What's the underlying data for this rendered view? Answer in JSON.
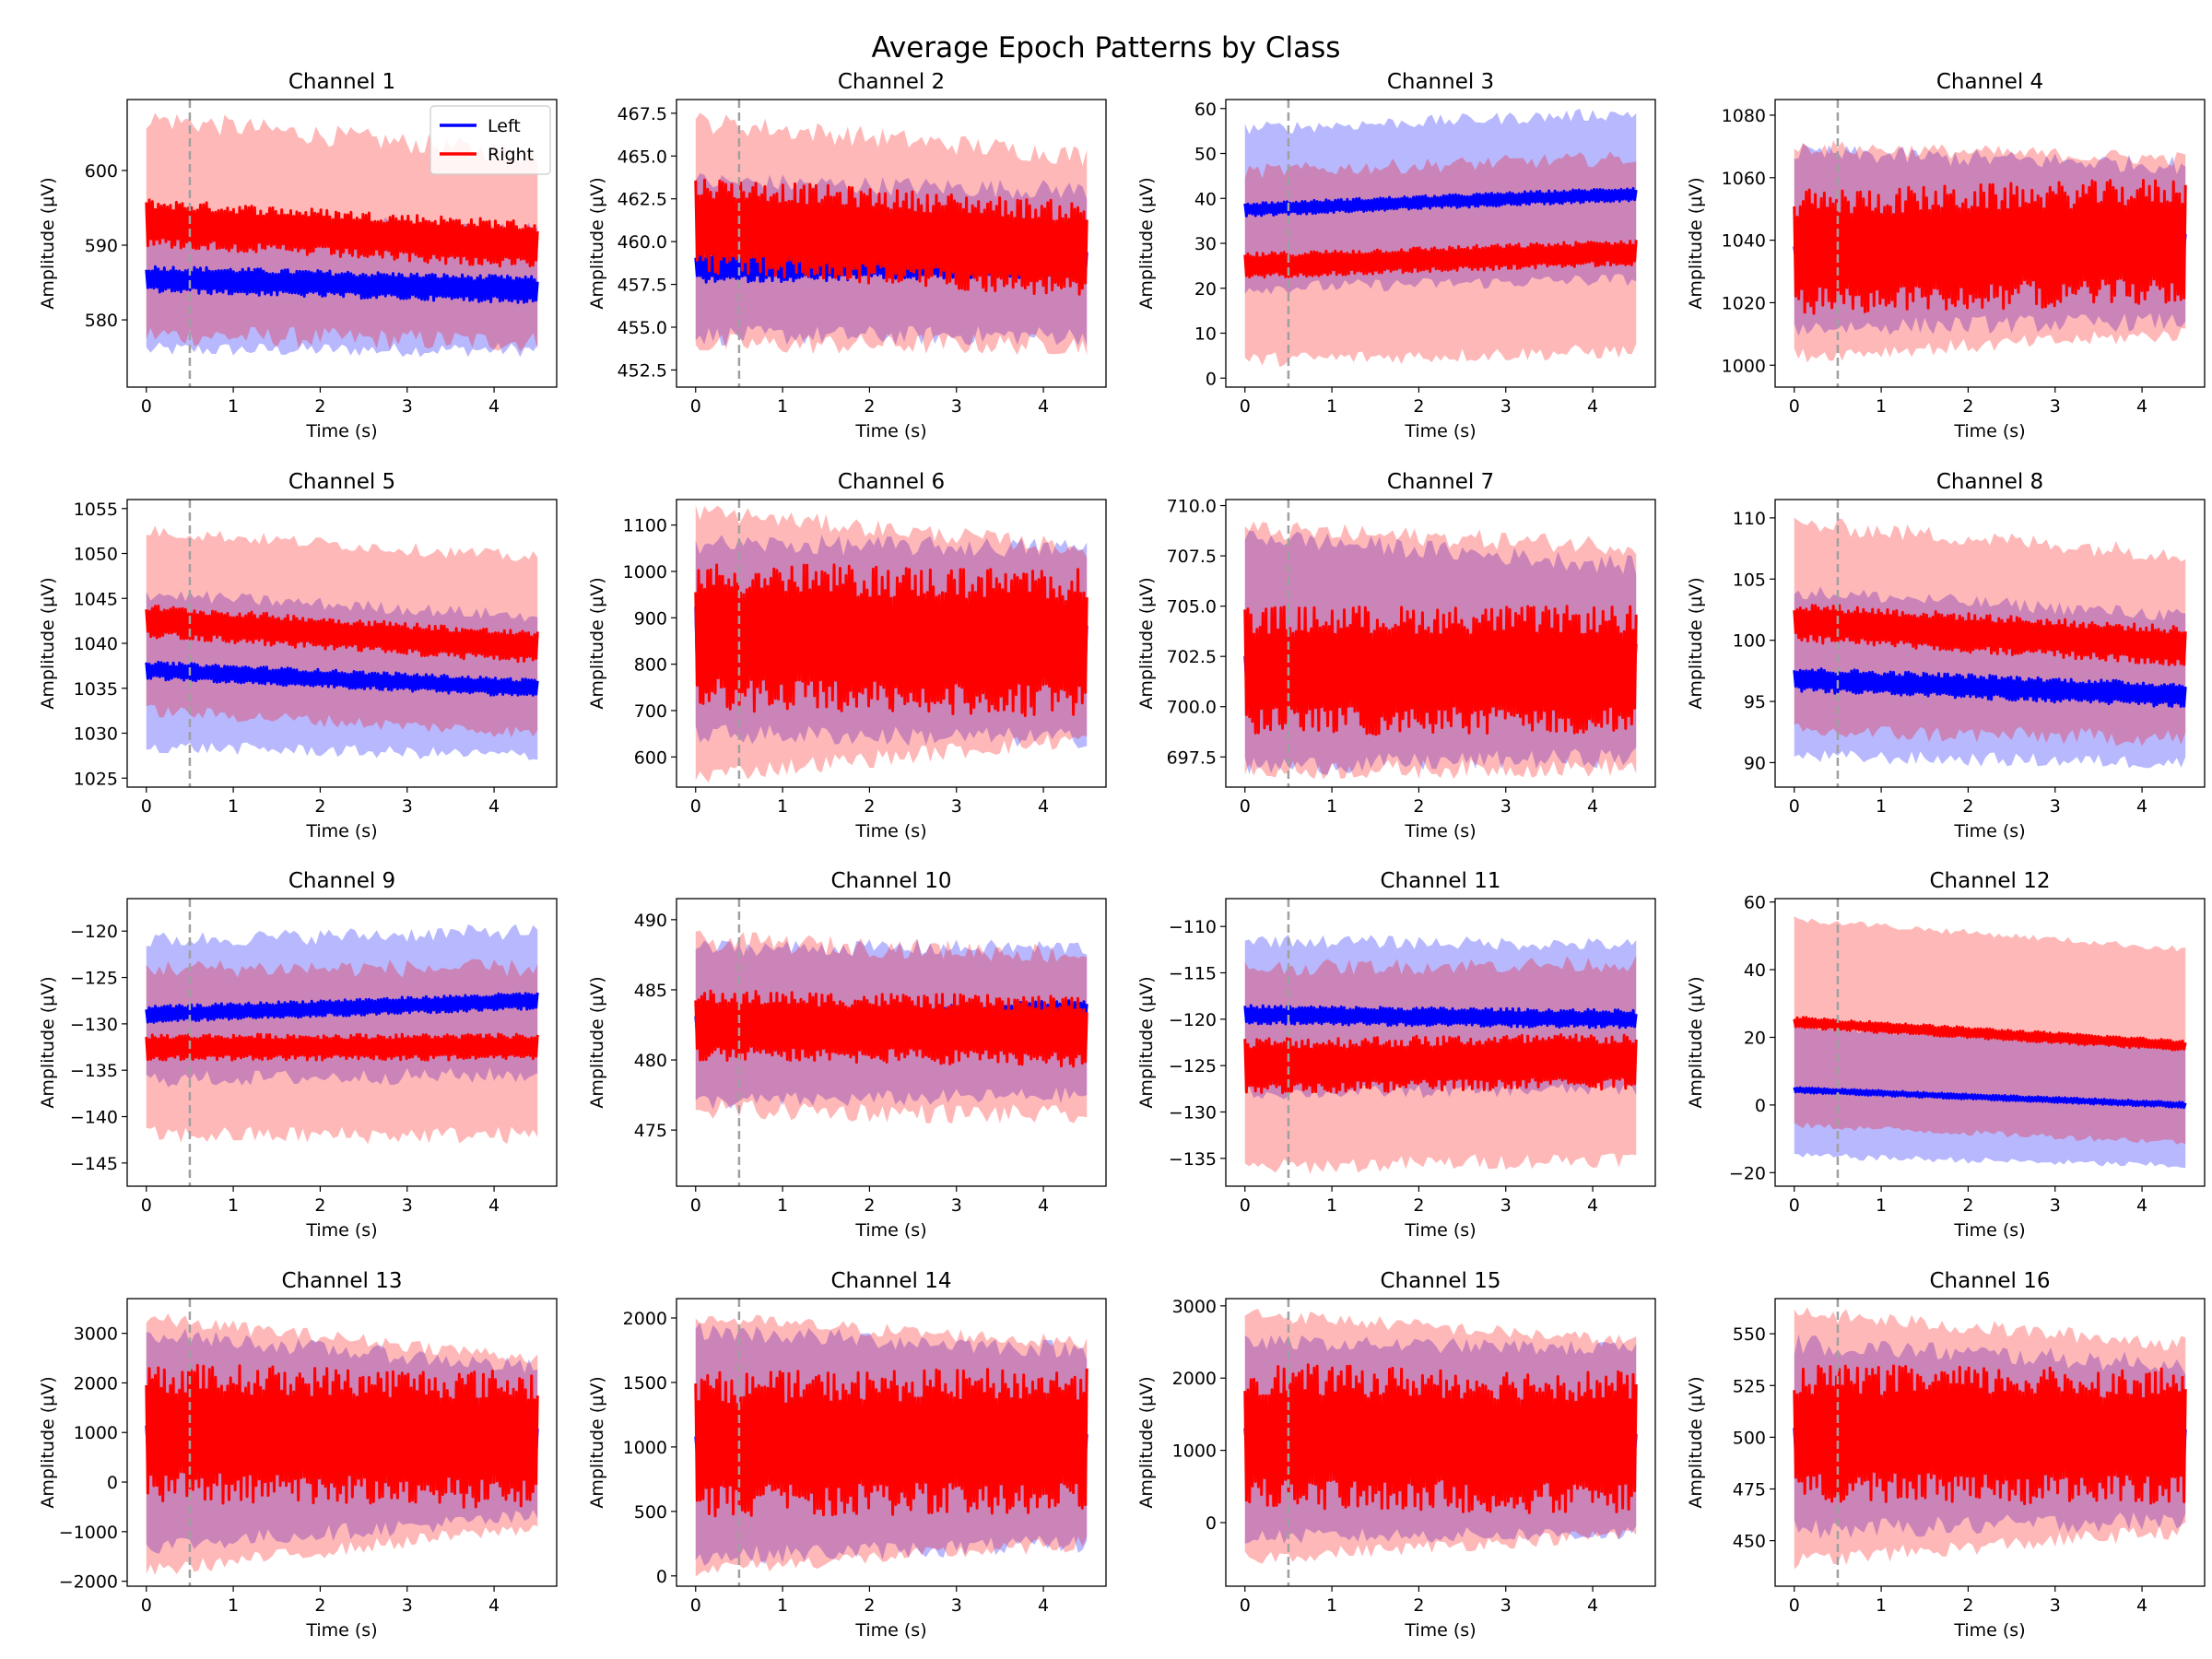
{
  "figure": {
    "title": "Average Epoch Patterns by Class",
    "series_colors": {
      "Left": "#0000ff",
      "Right": "#ff0000"
    },
    "marker_line_color": "#a0a0a0"
  },
  "chart_data": [
    {
      "type": "line",
      "title": "Channel 1",
      "xlabel": "Time (s)",
      "ylabel": "Amplitude (μV)",
      "xlim": [
        -0.22,
        4.72
      ],
      "xticks": [
        0,
        1,
        2,
        3,
        4
      ],
      "ylim": [
        571,
        609.5
      ],
      "yticks": [
        580,
        590,
        600
      ],
      "vline_x": 0.5,
      "legend": {
        "entries": [
          "Left",
          "Right"
        ],
        "position": "upper right"
      },
      "series": [
        {
          "name": "Left",
          "color": "#0000ff",
          "mean_start": 585.5,
          "mean_end": 584.0,
          "mean_half_width": 1.8,
          "band_low_start": 576,
          "band_low_end": 576,
          "band_high_start": 594,
          "band_high_end": 592,
          "band_edge": 2.0
        },
        {
          "name": "Right",
          "color": "#ff0000",
          "mean_start": 593.0,
          "mean_end": 590.0,
          "mean_half_width": 3.2,
          "band_low_start": 578,
          "band_low_end": 577,
          "band_high_start": 607,
          "band_high_end": 602,
          "band_edge": 3.0
        }
      ]
    },
    {
      "type": "line",
      "title": "Channel 2",
      "xlabel": "Time (s)",
      "ylabel": "Amplitude (μV)",
      "xlim": [
        -0.22,
        4.72
      ],
      "xticks": [
        0,
        1,
        2,
        3,
        4
      ],
      "ylim": [
        451.5,
        468.3
      ],
      "yticks": [
        452.5,
        455.0,
        457.5,
        460.0,
        462.5,
        465.0,
        467.5
      ],
      "vline_x": 0.5,
      "series": [
        {
          "name": "Left",
          "color": "#0000ff",
          "mean_start": 458.5,
          "mean_end": 458.8,
          "mean_half_width": 0.9,
          "band_low_start": 454.5,
          "band_low_end": 454.5,
          "band_high_start": 463.5,
          "band_high_end": 463.0,
          "band_edge": 1.2
        },
        {
          "name": "Right",
          "color": "#ff0000",
          "mean_start": 461.0,
          "mean_end": 459.5,
          "mean_half_width": 2.8,
          "band_low_start": 454.0,
          "band_low_end": 454.0,
          "band_high_start": 467.0,
          "band_high_end": 465.0,
          "band_edge": 1.3
        }
      ]
    },
    {
      "type": "line",
      "title": "Channel 3",
      "xlabel": "Time (s)",
      "ylabel": "Amplitude (μV)",
      "xlim": [
        -0.22,
        4.72
      ],
      "xticks": [
        0,
        1,
        2,
        3,
        4
      ],
      "ylim": [
        -2,
        62
      ],
      "yticks": [
        0,
        10,
        20,
        30,
        40,
        50,
        60
      ],
      "vline_x": 0.5,
      "series": [
        {
          "name": "Left",
          "color": "#0000ff",
          "mean_start": 37.5,
          "mean_end": 41.0,
          "mean_half_width": 1.5,
          "band_low_start": 20,
          "band_low_end": 22,
          "band_high_start": 55.5,
          "band_high_end": 59,
          "band_edge": 3.0
        },
        {
          "name": "Right",
          "color": "#ff0000",
          "mean_start": 25.0,
          "mean_end": 28.0,
          "mean_half_width": 2.8,
          "band_low_start": 4,
          "band_low_end": 6,
          "band_high_start": 46,
          "band_high_end": 49,
          "band_edge": 3.5
        }
      ]
    },
    {
      "type": "line",
      "title": "Channel 4",
      "xlabel": "Time (s)",
      "ylabel": "Amplitude (μV)",
      "xlim": [
        -0.22,
        4.72
      ],
      "xticks": [
        0,
        1,
        2,
        3,
        4
      ],
      "ylim": [
        993,
        1085
      ],
      "yticks": [
        1000,
        1020,
        1040,
        1060,
        1080
      ],
      "vline_x": 0.5,
      "series": [
        {
          "name": "Left",
          "color": "#0000ff",
          "mean_start": 1036,
          "mean_end": 1040,
          "mean_half_width": 3.0,
          "band_low_start": 1012,
          "band_low_end": 1014,
          "band_high_start": 1068,
          "band_high_end": 1064,
          "band_edge": 6.0
        },
        {
          "name": "Right",
          "color": "#ff0000",
          "mean_start": 1036,
          "mean_end": 1040,
          "mean_half_width": 20.0,
          "band_low_start": 1003,
          "band_low_end": 1010,
          "band_high_start": 1070,
          "band_high_end": 1066,
          "band_edge": 5.0
        }
      ]
    },
    {
      "type": "line",
      "title": "Channel 5",
      "xlabel": "Time (s)",
      "ylabel": "Amplitude (μV)",
      "xlim": [
        -0.22,
        4.72
      ],
      "xticks": [
        0,
        1,
        2,
        3,
        4
      ],
      "ylim": [
        1024,
        1056
      ],
      "yticks": [
        1025,
        1030,
        1035,
        1040,
        1045,
        1050,
        1055
      ],
      "vline_x": 0.5,
      "series": [
        {
          "name": "Left",
          "color": "#0000ff",
          "mean_start": 1037.0,
          "mean_end": 1035.0,
          "mean_half_width": 1.0,
          "band_low_start": 1028.5,
          "band_low_end": 1027.5,
          "band_high_start": 1045.5,
          "band_high_end": 1043.0,
          "band_edge": 1.5
        },
        {
          "name": "Right",
          "color": "#ff0000",
          "mean_start": 1042.5,
          "mean_end": 1039.5,
          "mean_half_width": 1.8,
          "band_low_start": 1032.5,
          "band_low_end": 1030.0,
          "band_high_start": 1052.5,
          "band_high_end": 1049.5,
          "band_edge": 1.5
        }
      ]
    },
    {
      "type": "line",
      "title": "Channel 6",
      "xlabel": "Time (s)",
      "ylabel": "Amplitude (μV)",
      "xlim": [
        -0.22,
        4.72
      ],
      "xticks": [
        0,
        1,
        2,
        3,
        4
      ],
      "ylim": [
        535,
        1155
      ],
      "yticks": [
        600,
        700,
        800,
        900,
        1000,
        1100
      ],
      "vline_x": 0.5,
      "series": [
        {
          "name": "Left",
          "color": "#0000ff",
          "mean_start": 855,
          "mean_end": 840,
          "mean_half_width": 70,
          "band_low_start": 650,
          "band_low_end": 640,
          "band_high_start": 1060,
          "band_high_end": 1050,
          "band_edge": 45
        },
        {
          "name": "Right",
          "color": "#ff0000",
          "mean_start": 860,
          "mean_end": 845,
          "mean_half_width": 160,
          "band_low_start": 560,
          "band_low_end": 640,
          "band_high_start": 1130,
          "band_high_end": 1050,
          "band_edge": 40
        }
      ]
    },
    {
      "type": "line",
      "title": "Channel 7",
      "xlabel": "Time (s)",
      "ylabel": "Amplitude (μV)",
      "xlim": [
        -0.22,
        4.72
      ],
      "xticks": [
        0,
        1,
        2,
        3,
        4
      ],
      "ylim": [
        696,
        710.3
      ],
      "yticks": [
        697.5,
        700.0,
        702.5,
        705.0,
        707.5,
        710.0
      ],
      "vline_x": 0.5,
      "series": [
        {
          "name": "Left",
          "color": "#0000ff",
          "mean_start": 702.0,
          "mean_end": 702.5,
          "mean_half_width": 0.8,
          "band_low_start": 697.0,
          "band_low_end": 697.5,
          "band_high_start": 708.5,
          "band_high_end": 707.0,
          "band_edge": 1.0
        },
        {
          "name": "Right",
          "color": "#ff0000",
          "mean_start": 701.8,
          "mean_end": 701.8,
          "mean_half_width": 3.2,
          "band_low_start": 696.8,
          "band_low_end": 697.0,
          "band_high_start": 708.8,
          "band_high_end": 708.0,
          "band_edge": 1.0
        }
      ]
    },
    {
      "type": "line",
      "title": "Channel 8",
      "xlabel": "Time (s)",
      "ylabel": "Amplitude (μV)",
      "xlim": [
        -0.22,
        4.72
      ],
      "xticks": [
        0,
        1,
        2,
        3,
        4
      ],
      "ylim": [
        88,
        111.5
      ],
      "yticks": [
        90,
        95,
        100,
        105,
        110
      ],
      "vline_x": 0.5,
      "series": [
        {
          "name": "Left",
          "color": "#0000ff",
          "mean_start": 96.8,
          "mean_end": 95.5,
          "mean_half_width": 1.0,
          "band_low_start": 90.5,
          "band_low_end": 90.0,
          "band_high_start": 104.0,
          "band_high_end": 102.0,
          "band_edge": 1.2
        },
        {
          "name": "Right",
          "color": "#ff0000",
          "mean_start": 101.5,
          "mean_end": 99.5,
          "mean_half_width": 1.6,
          "band_low_start": 92.5,
          "band_low_end": 92.0,
          "band_high_start": 109.5,
          "band_high_end": 107.0,
          "band_edge": 1.5
        }
      ]
    },
    {
      "type": "line",
      "title": "Channel 9",
      "xlabel": "Time (s)",
      "ylabel": "Amplitude (μV)",
      "xlim": [
        -0.22,
        4.72
      ],
      "xticks": [
        0,
        1,
        2,
        3,
        4
      ],
      "ylim": [
        -147.5,
        -116.5
      ],
      "yticks": [
        -145,
        -140,
        -135,
        -130,
        -125,
        -120
      ],
      "vline_x": 0.5,
      "series": [
        {
          "name": "Left",
          "color": "#0000ff",
          "mean_start": -129.0,
          "mean_end": -127.5,
          "mean_half_width": 0.9,
          "band_low_start": -136.0,
          "band_low_end": -135.5,
          "band_high_start": -121.0,
          "band_high_end": -120.0,
          "band_edge": 1.8
        },
        {
          "name": "Right",
          "color": "#ff0000",
          "mean_start": -132.5,
          "mean_end": -132.5,
          "mean_half_width": 1.4,
          "band_low_start": -142.0,
          "band_low_end": -142.0,
          "band_high_start": -124.0,
          "band_high_end": -124.0,
          "band_edge": 2.0
        }
      ]
    },
    {
      "type": "line",
      "title": "Channel 10",
      "xlabel": "Time (s)",
      "ylabel": "Amplitude (μV)",
      "xlim": [
        -0.22,
        4.72
      ],
      "xticks": [
        0,
        1,
        2,
        3,
        4
      ],
      "ylim": [
        471,
        491.5
      ],
      "yticks": [
        475,
        480,
        485,
        490
      ],
      "vline_x": 0.5,
      "series": [
        {
          "name": "Left",
          "color": "#0000ff",
          "mean_start": 482.5,
          "mean_end": 483.5,
          "mean_half_width": 0.8,
          "band_low_start": 477.0,
          "band_low_end": 477.5,
          "band_high_start": 488.0,
          "band_high_end": 488.0,
          "band_edge": 1.2
        },
        {
          "name": "Right",
          "color": "#ff0000",
          "mean_start": 482.5,
          "mean_end": 482.0,
          "mean_half_width": 2.5,
          "band_low_start": 476.5,
          "band_low_end": 476.0,
          "band_high_start": 488.5,
          "band_high_end": 487.5,
          "band_edge": 1.5
        }
      ]
    },
    {
      "type": "line",
      "title": "Channel 11",
      "xlabel": "Time (s)",
      "ylabel": "Amplitude (μV)",
      "xlim": [
        -0.22,
        4.72
      ],
      "xticks": [
        0,
        1,
        2,
        3,
        4
      ],
      "ylim": [
        -138,
        -107
      ],
      "yticks": [
        -135,
        -130,
        -125,
        -120,
        -115,
        -110
      ],
      "vline_x": 0.5,
      "series": [
        {
          "name": "Left",
          "color": "#0000ff",
          "mean_start": -119.5,
          "mean_end": -120.0,
          "mean_half_width": 1.0,
          "band_low_start": -128.0,
          "band_low_end": -127.5,
          "band_high_start": -111.5,
          "band_high_end": -112.0,
          "band_edge": 1.5
        },
        {
          "name": "Right",
          "color": "#ff0000",
          "mean_start": -125.0,
          "mean_end": -124.5,
          "mean_half_width": 3.0,
          "band_low_start": -136.0,
          "band_low_end": -135.0,
          "band_high_start": -114.5,
          "band_high_end": -114.0,
          "band_edge": 1.8
        }
      ]
    },
    {
      "type": "line",
      "title": "Channel 12",
      "xlabel": "Time (s)",
      "ylabel": "Amplitude (μV)",
      "xlim": [
        -0.22,
        4.72
      ],
      "xticks": [
        0,
        1,
        2,
        3,
        4
      ],
      "ylim": [
        -24,
        61
      ],
      "yticks": [
        -20,
        0,
        20,
        40,
        60
      ],
      "vline_x": 0.5,
      "series": [
        {
          "name": "Left",
          "color": "#0000ff",
          "mean_start": 4.5,
          "mean_end": 0.0,
          "mean_half_width": 0.8,
          "band_low_start": -15,
          "band_low_end": -18,
          "band_high_start": 23,
          "band_high_end": 18,
          "band_edge": 2.0
        },
        {
          "name": "Right",
          "color": "#ff0000",
          "mean_start": 24.5,
          "mean_end": 17.5,
          "mean_half_width": 1.6,
          "band_low_start": -6,
          "band_low_end": -11,
          "band_high_start": 55,
          "band_high_end": 46,
          "band_edge": 2.0
        }
      ]
    },
    {
      "type": "line",
      "title": "Channel 13",
      "xlabel": "Time (s)",
      "ylabel": "Amplitude (μV)",
      "xlim": [
        -0.22,
        4.72
      ],
      "xticks": [
        0,
        1,
        2,
        3,
        4
      ],
      "ylim": [
        -2100,
        3700
      ],
      "yticks": [
        -2000,
        -1000,
        0,
        1000,
        2000,
        3000
      ],
      "vline_x": 0.5,
      "series": [
        {
          "name": "Left",
          "color": "#0000ff",
          "mean_start": 900,
          "mean_end": 800,
          "mean_half_width": 300,
          "band_low_start": -1300,
          "band_low_end": -700,
          "band_high_start": 3000,
          "band_high_end": 2300,
          "band_edge": 350
        },
        {
          "name": "Right",
          "color": "#ff0000",
          "mean_start": 1000,
          "mean_end": 850,
          "mean_half_width": 1400,
          "band_low_start": -1800,
          "band_low_end": -900,
          "band_high_start": 3300,
          "band_high_end": 2500,
          "band_edge": 300
        }
      ]
    },
    {
      "type": "line",
      "title": "Channel 14",
      "xlabel": "Time (s)",
      "ylabel": "Amplitude (μV)",
      "xlim": [
        -0.22,
        4.72
      ],
      "xticks": [
        0,
        1,
        2,
        3,
        4
      ],
      "ylim": [
        -80,
        2150
      ],
      "yticks": [
        0,
        500,
        1000,
        1500,
        2000
      ],
      "vline_x": 0.5,
      "series": [
        {
          "name": "Left",
          "color": "#0000ff",
          "mean_start": 1000,
          "mean_end": 1000,
          "mean_half_width": 120,
          "band_low_start": 150,
          "band_low_end": 250,
          "band_high_start": 1900,
          "band_high_end": 1750,
          "band_edge": 150
        },
        {
          "name": "Right",
          "color": "#ff0000",
          "mean_start": 1020,
          "mean_end": 1050,
          "mean_half_width": 560,
          "band_low_start": 50,
          "band_low_end": 250,
          "band_high_start": 2000,
          "band_high_end": 1800,
          "band_edge": 120
        }
      ]
    },
    {
      "type": "line",
      "title": "Channel 15",
      "xlabel": "Time (s)",
      "ylabel": "Amplitude (μV)",
      "xlim": [
        -0.22,
        4.72
      ],
      "xticks": [
        0,
        1,
        2,
        3,
        4
      ],
      "ylim": [
        -880,
        3100
      ],
      "yticks": [
        0,
        1000,
        2000,
        3000
      ],
      "vline_x": 0.5,
      "series": [
        {
          "name": "Left",
          "color": "#0000ff",
          "mean_start": 1150,
          "mean_end": 1100,
          "mean_half_width": 200,
          "band_low_start": -200,
          "band_low_end": -150,
          "band_high_start": 2500,
          "band_high_end": 2400,
          "band_edge": 220
        },
        {
          "name": "Right",
          "color": "#ff0000",
          "mean_start": 1200,
          "mean_end": 1100,
          "mean_half_width": 1000,
          "band_low_start": -500,
          "band_low_end": -150,
          "band_high_start": 2900,
          "band_high_end": 2500,
          "band_edge": 200
        }
      ]
    },
    {
      "type": "line",
      "title": "Channel 16",
      "xlabel": "Time (s)",
      "ylabel": "Amplitude (μV)",
      "xlim": [
        -0.22,
        4.72
      ],
      "xticks": [
        0,
        1,
        2,
        3,
        4
      ],
      "ylim": [
        428,
        567
      ],
      "yticks": [
        450,
        475,
        500,
        525,
        550
      ],
      "vline_x": 0.5,
      "series": [
        {
          "name": "Left",
          "color": "#0000ff",
          "mean_start": 500,
          "mean_end": 497,
          "mean_half_width": 8,
          "band_low_start": 455,
          "band_low_end": 460,
          "band_high_start": 545,
          "band_high_end": 535,
          "band_edge": 10
        },
        {
          "name": "Right",
          "color": "#ff0000",
          "mean_start": 502,
          "mean_end": 500,
          "mean_half_width": 33,
          "band_low_start": 440,
          "band_low_end": 455,
          "band_high_start": 560,
          "band_high_end": 545,
          "band_edge": 8
        }
      ]
    }
  ]
}
